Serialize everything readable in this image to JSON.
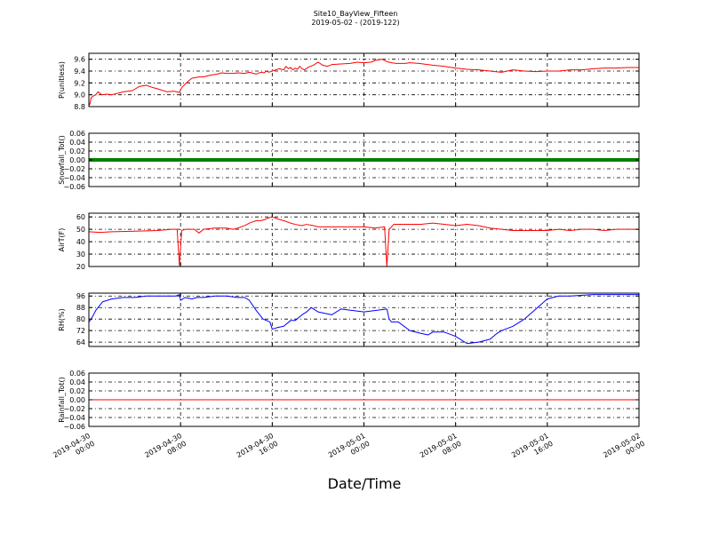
{
  "figure": {
    "title": "Site10_BayView_Fifteen",
    "subtitle": "2019-05-02 - (2019-122)",
    "xlabel": "Date/Time"
  },
  "chart_data": [
    {
      "type": "line",
      "ylabel": "P(unitless)",
      "ylim": [
        8.8,
        9.7
      ],
      "yticks": [
        "8.8",
        "9.0",
        "9.2",
        "9.4",
        "9.6"
      ],
      "grid": true,
      "series": [
        {
          "color": "#ff0000",
          "x": [
            0,
            0.05,
            0.1,
            0.2,
            0.3,
            0.4,
            0.5,
            0.55,
            0.8,
            1,
            1.5,
            1.9,
            2.2,
            2.5,
            2.8,
            3,
            3.4,
            3.7,
            3.95,
            4.05,
            4.2,
            4.4,
            4.5,
            4.8,
            5,
            5.3,
            5.6,
            5.8,
            6,
            6.3,
            6.5,
            6.8,
            7,
            7.3,
            7.5,
            7.65,
            7.75,
            7.85,
            8,
            8.3,
            8.5,
            8.6,
            8.7,
            8.8,
            8.9,
            9,
            9.1,
            9.2,
            9.3,
            9.4,
            9.6,
            9.8,
            10,
            10.2,
            10.4,
            10.6,
            11,
            11.4,
            11.7,
            12,
            12.3,
            12.5,
            12.8,
            13,
            13.2,
            13.4,
            13.6,
            13.8,
            14,
            14.4,
            15,
            15.5,
            16,
            16.5,
            17,
            17.5,
            18,
            18.5,
            19,
            19.5,
            20,
            20.5,
            21,
            21.5,
            22,
            22.5,
            23,
            23.5,
            24
          ],
          "y": [
            8.82,
            8.85,
            8.95,
            8.98,
            9.0,
            9.05,
            9.02,
            9.0,
            9.01,
            9.0,
            9.05,
            9.07,
            9.14,
            9.16,
            9.12,
            9.1,
            9.05,
            9.06,
            9.04,
            9.12,
            9.18,
            9.25,
            9.28,
            9.3,
            9.3,
            9.33,
            9.35,
            9.37,
            9.36,
            9.36,
            9.37,
            9.36,
            9.38,
            9.35,
            9.38,
            9.37,
            9.4,
            9.38,
            9.4,
            9.44,
            9.42,
            9.48,
            9.44,
            9.46,
            9.42,
            9.45,
            9.43,
            9.48,
            9.44,
            9.42,
            9.47,
            9.5,
            9.55,
            9.5,
            9.48,
            9.51,
            9.52,
            9.53,
            9.55,
            9.54,
            9.55,
            9.58,
            9.6,
            9.56,
            9.54,
            9.53,
            9.53,
            9.53,
            9.54,
            9.53,
            9.5,
            9.48,
            9.45,
            9.43,
            9.42,
            9.4,
            9.38,
            9.42,
            9.4,
            9.39,
            9.4,
            9.4,
            9.42,
            9.42,
            9.44,
            9.45,
            9.45,
            9.46,
            9.46
          ]
        }
      ]
    },
    {
      "type": "line",
      "ylabel": "Snowfall_Tot()",
      "ylim": [
        -0.06,
        0.06
      ],
      "yticks": [
        "−0.06",
        "−0.04",
        "−0.02",
        "0.00",
        "0.02",
        "0.04",
        "0.06"
      ],
      "grid": true,
      "series": [
        {
          "color": "#008000",
          "x": [
            0,
            24
          ],
          "y": [
            0,
            0
          ]
        }
      ]
    },
    {
      "type": "line",
      "ylabel": "AirT(F)",
      "ylim": [
        20,
        63
      ],
      "yticks": [
        "20",
        "30",
        "40",
        "50",
        "60"
      ],
      "grid": true,
      "series": [
        {
          "color": "#ff0000",
          "x": [
            0,
            0.5,
            1,
            2,
            3,
            3.6,
            3.85,
            3.95,
            4.05,
            4.2,
            4.6,
            4.8,
            5,
            5.5,
            6,
            6.3,
            6.5,
            6.8,
            7,
            7.3,
            7.5,
            7.7,
            7.8,
            7.9,
            8,
            8.3,
            8.5,
            8.8,
            9,
            9.3,
            9.5,
            9.8,
            10,
            10.5,
            11,
            11.5,
            12,
            12.5,
            12.9,
            13.0,
            13.1,
            13.3,
            14,
            14.5,
            15,
            15.5,
            16,
            16.5,
            17,
            17.5,
            18,
            18.5,
            19,
            19.5,
            20,
            20.5,
            21,
            21.5,
            22,
            22.5,
            23,
            23.5,
            24
          ],
          "y": [
            48,
            47.5,
            48,
            48.5,
            49,
            50,
            50,
            21,
            49,
            50,
            50,
            47,
            50,
            51,
            51,
            50,
            51,
            53,
            55,
            57,
            57,
            58,
            59,
            59.5,
            60,
            58,
            57,
            55,
            54,
            53,
            54,
            53,
            52,
            52,
            52,
            52,
            52,
            51,
            52,
            20,
            50,
            54,
            54,
            54,
            55,
            54,
            53,
            54,
            53,
            51,
            50,
            49,
            49,
            49,
            49,
            50,
            49,
            50,
            50,
            49,
            50,
            50,
            50
          ]
        }
      ]
    },
    {
      "type": "line",
      "ylabel": "RH(%)",
      "ylim": [
        61,
        98
      ],
      "yticks": [
        "64",
        "72",
        "80",
        "88",
        "96"
      ],
      "grid": true,
      "series": [
        {
          "color": "#0000ff",
          "x": [
            0,
            0.1,
            0.3,
            0.6,
            1,
            1.5,
            2,
            2.5,
            3,
            3.5,
            3.8,
            3.95,
            4.0,
            4.2,
            4.5,
            4.7,
            5,
            5.5,
            6,
            6.5,
            6.8,
            7,
            7.3,
            7.6,
            7.9,
            8,
            8.2,
            8.5,
            8.8,
            9.0,
            9.3,
            9.5,
            9.7,
            10,
            10.3,
            10.6,
            11,
            11.5,
            12,
            12.5,
            13,
            13.1,
            13.2,
            13.5,
            14,
            14.5,
            14.8,
            15,
            15.5,
            16,
            16.5,
            17,
            17.5,
            17.8,
            18,
            18.5,
            19,
            19.5,
            20,
            20.5,
            21,
            22,
            23,
            24
          ],
          "y": [
            78,
            80,
            86,
            92,
            94,
            95,
            95,
            96,
            96,
            96,
            96,
            97,
            93,
            95,
            94,
            95,
            95,
            96,
            96,
            95,
            95,
            93,
            86,
            80,
            78,
            73,
            74,
            75,
            79,
            79,
            83,
            85,
            88,
            85,
            84,
            83,
            87,
            86,
            85,
            86,
            87,
            80,
            78,
            78,
            72,
            70,
            69,
            71,
            71,
            68,
            63,
            64,
            66,
            70,
            72,
            75,
            80,
            87,
            94,
            96,
            96,
            97,
            97,
            97
          ]
        }
      ]
    },
    {
      "type": "line",
      "ylabel": "Rainfall_Tot()",
      "ylim": [
        -0.06,
        0.06
      ],
      "yticks": [
        "−0.06",
        "−0.04",
        "−0.02",
        "0.00",
        "0.02",
        "0.04",
        "0.06"
      ],
      "grid": true,
      "series": [
        {
          "color": "#ff0000",
          "x": [
            0,
            24
          ],
          "y": [
            0,
            0
          ]
        }
      ]
    }
  ],
  "x_axis": {
    "range_hours": [
      0,
      48
    ],
    "ticks": [
      {
        "hour": 0,
        "line1": "2019-04-30",
        "line2": "00:00"
      },
      {
        "hour": 8,
        "line1": "2019-04-30",
        "line2": "08:00"
      },
      {
        "hour": 16,
        "line1": "2019-04-30",
        "line2": "16:00"
      },
      {
        "hour": 24,
        "line1": "2019-05-01",
        "line2": "00:00"
      },
      {
        "hour": 32,
        "line1": "2019-05-01",
        "line2": "08:00"
      },
      {
        "hour": 40,
        "line1": "2019-05-01",
        "line2": "16:00"
      },
      {
        "hour": 48,
        "line1": "2019-05-02",
        "line2": "00:00"
      }
    ]
  }
}
